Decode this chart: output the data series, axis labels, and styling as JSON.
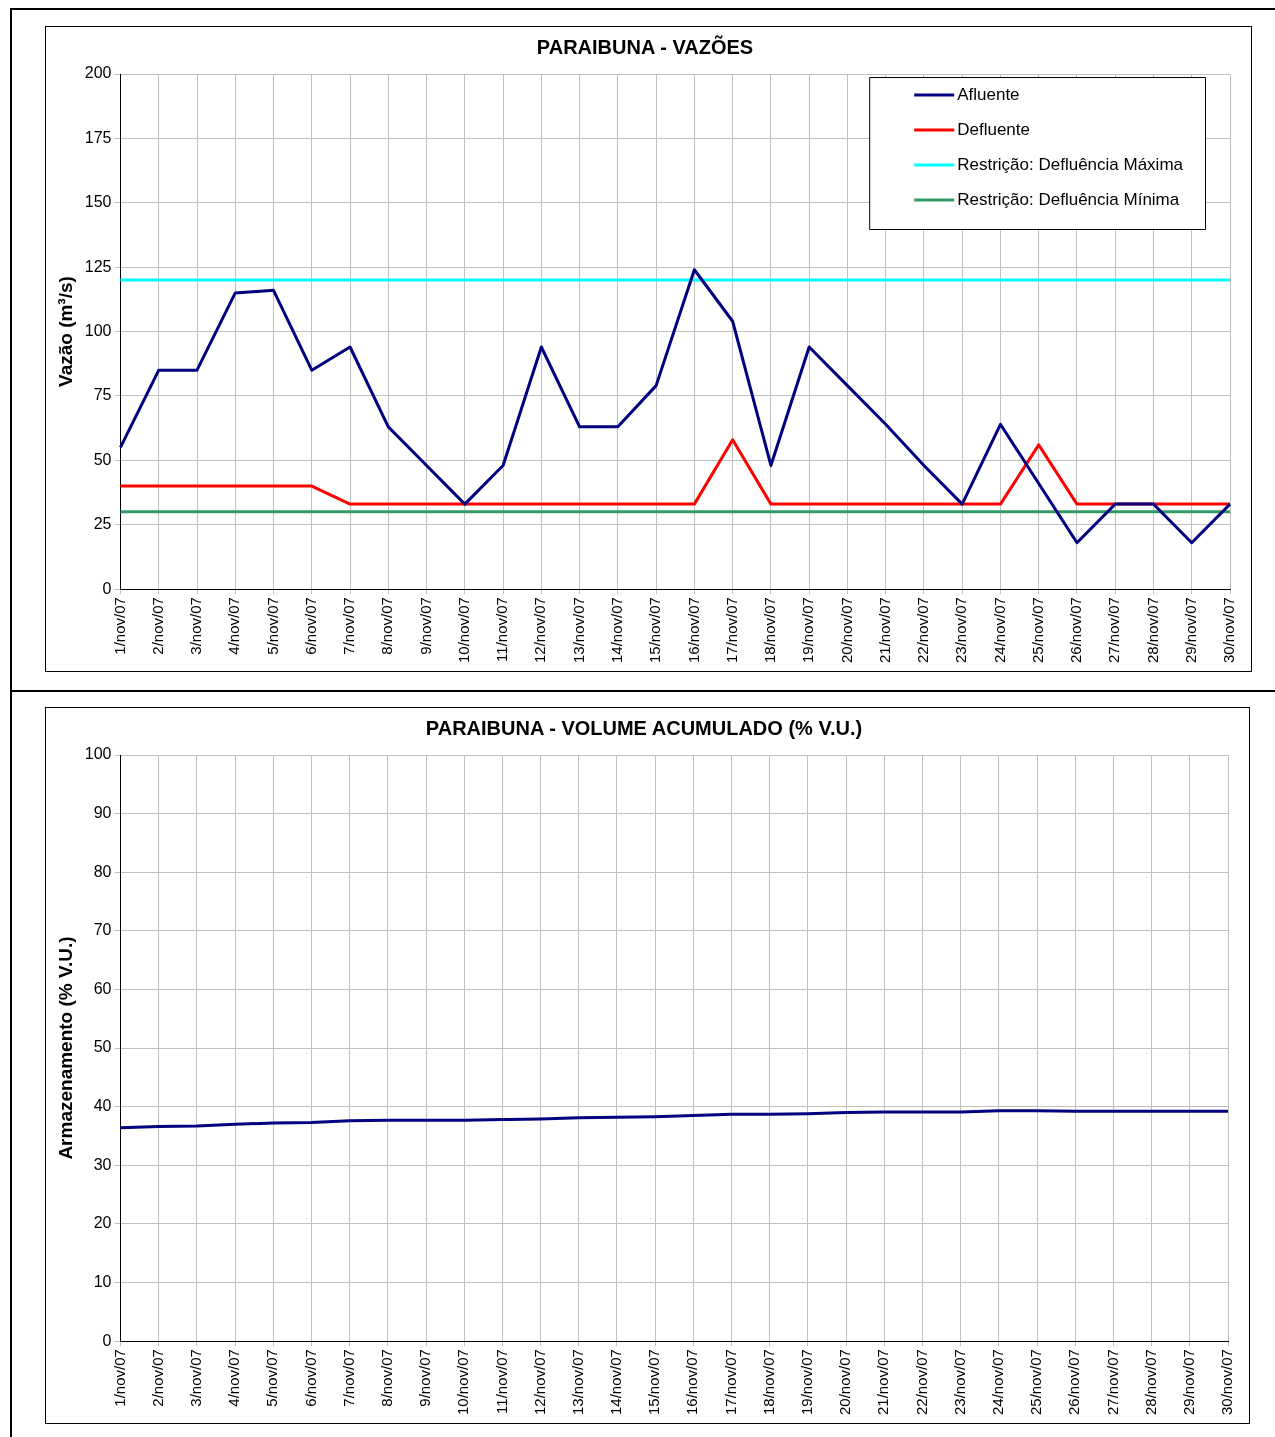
{
  "chart_data": [
    {
      "type": "line",
      "title": "PARAIBUNA - VAZÕES",
      "ylabel": "Vazão (m³/s)",
      "categories": [
        "1/nov/07",
        "2/nov/07",
        "3/nov/07",
        "4/nov/07",
        "5/nov/07",
        "6/nov/07",
        "7/nov/07",
        "8/nov/07",
        "9/nov/07",
        "10/nov/07",
        "11/nov/07",
        "12/nov/07",
        "13/nov/07",
        "14/nov/07",
        "15/nov/07",
        "16/nov/07",
        "17/nov/07",
        "18/nov/07",
        "19/nov/07",
        "20/nov/07",
        "21/nov/07",
        "22/nov/07",
        "23/nov/07",
        "24/nov/07",
        "25/nov/07",
        "26/nov/07",
        "27/nov/07",
        "28/nov/07",
        "29/nov/07",
        "30/nov/07"
      ],
      "series": [
        {
          "name": "Afluente",
          "color": "#000080",
          "values": [
            55,
            85,
            85,
            115,
            116,
            85,
            94,
            63,
            48,
            33,
            48,
            94,
            63,
            63,
            79,
            124,
            104,
            48,
            94,
            79,
            64,
            48,
            33,
            64,
            41,
            18,
            33,
            33,
            18,
            33
          ]
        },
        {
          "name": "Defluente",
          "color": "#ff0000",
          "values": [
            40,
            40,
            40,
            40,
            40,
            40,
            33,
            33,
            33,
            33,
            33,
            33,
            33,
            33,
            33,
            33,
            58,
            33,
            33,
            33,
            33,
            33,
            33,
            33,
            56,
            33,
            33,
            33,
            33,
            33
          ]
        },
        {
          "name": "Restrição: Defluência Máxima",
          "color": "#00ffff",
          "values": [
            120,
            120,
            120,
            120,
            120,
            120,
            120,
            120,
            120,
            120,
            120,
            120,
            120,
            120,
            120,
            120,
            120,
            120,
            120,
            120,
            120,
            120,
            120,
            120,
            120,
            120,
            120,
            120,
            120,
            120
          ]
        },
        {
          "name": "Restrição: Defluência Mínima",
          "color": "#339966",
          "values": [
            30,
            30,
            30,
            30,
            30,
            30,
            30,
            30,
            30,
            30,
            30,
            30,
            30,
            30,
            30,
            30,
            30,
            30,
            30,
            30,
            30,
            30,
            30,
            30,
            30,
            30,
            30,
            30,
            30,
            30
          ]
        }
      ],
      "ylim": [
        0,
        200
      ],
      "yticks": [
        0,
        25,
        50,
        75,
        100,
        125,
        150,
        175,
        200
      ],
      "grid": true,
      "legend": "top right",
      "marker": "none",
      "line_style": "solid"
    },
    {
      "type": "line",
      "title": "PARAIBUNA - VOLUME ACUMULADO (% V.U.)",
      "ylabel": "Armazenamento (% V.U.)",
      "categories": [
        "1/nov/07",
        "2/nov/07",
        "3/nov/07",
        "4/nov/07",
        "5/nov/07",
        "6/nov/07",
        "7/nov/07",
        "8/nov/07",
        "9/nov/07",
        "10/nov/07",
        "11/nov/07",
        "12/nov/07",
        "13/nov/07",
        "14/nov/07",
        "15/nov/07",
        "16/nov/07",
        "17/nov/07",
        "18/nov/07",
        "19/nov/07",
        "20/nov/07",
        "21/nov/07",
        "22/nov/07",
        "23/nov/07",
        "24/nov/07",
        "25/nov/07",
        "26/nov/07",
        "27/nov/07",
        "28/nov/07",
        "29/nov/07",
        "30/nov/07"
      ],
      "series": [
        {
          "color": "#000080",
          "values": [
            36.4,
            36.6,
            36.7,
            37.0,
            37.2,
            37.3,
            37.6,
            37.7,
            37.7,
            37.7,
            37.8,
            37.9,
            38.1,
            38.2,
            38.3,
            38.5,
            38.7,
            38.7,
            38.8,
            39.0,
            39.1,
            39.1,
            39.1,
            39.3,
            39.3,
            39.2,
            39.2,
            39.2,
            39.2,
            39.2
          ]
        }
      ],
      "ylim": [
        0,
        100
      ],
      "yticks": [
        0,
        10,
        20,
        30,
        40,
        50,
        60,
        70,
        80,
        90,
        100
      ],
      "grid": true,
      "legend": false,
      "marker": "none",
      "line_style": "solid"
    }
  ]
}
